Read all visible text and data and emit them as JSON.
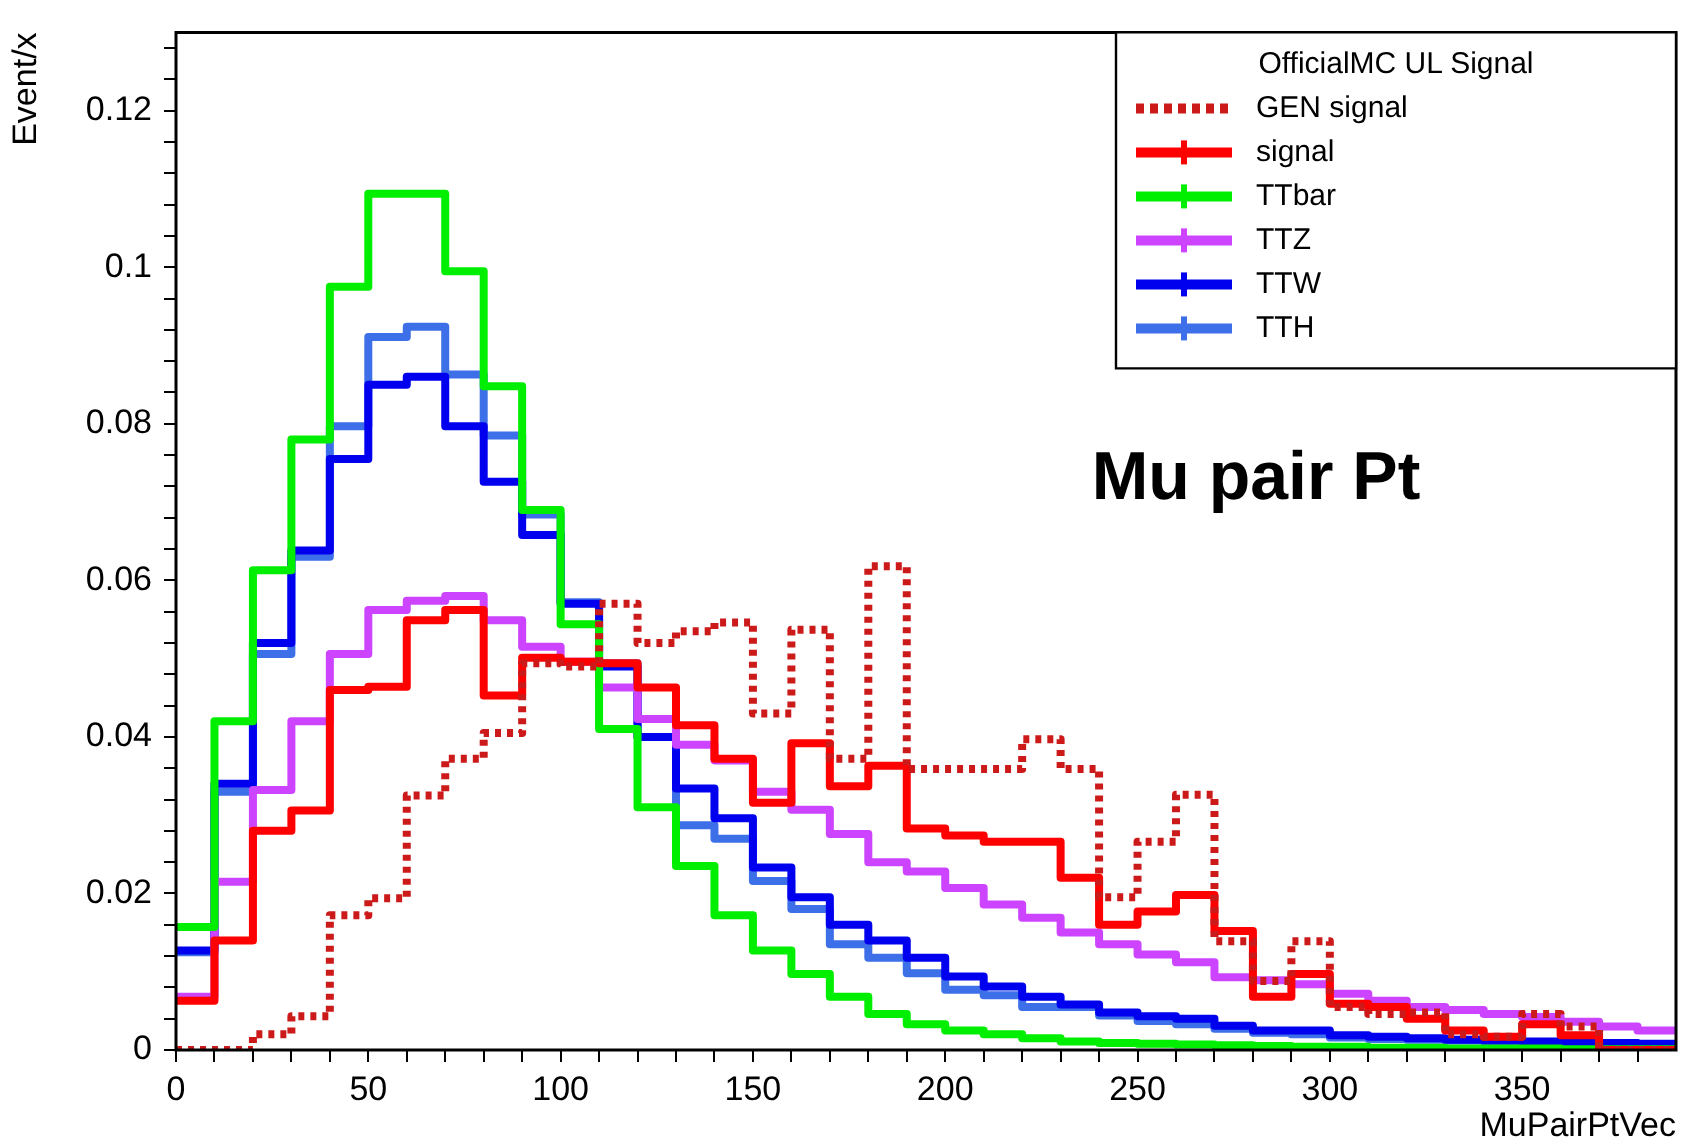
{
  "chart_data": {
    "type": "histogram",
    "xlabel": "MuPairPtVec",
    "ylabel": "Event/x",
    "legend_title": "OfficialMC UL Signal",
    "legend": "top right",
    "grid": false,
    "annotations": [
      "Mu pair Pt"
    ],
    "bins": [
      0,
      10,
      20,
      30,
      40,
      50,
      60,
      70,
      80,
      90,
      100,
      110,
      120,
      130,
      140,
      150,
      160,
      170,
      180,
      190,
      200,
      210,
      220,
      230,
      240,
      250,
      260,
      270,
      280,
      290,
      300,
      310,
      320,
      330,
      340,
      350,
      360,
      370,
      380,
      390
    ],
    "xlim": [
      0,
      390
    ],
    "xticks": [
      0,
      {
        "value": 10,
        "label": null
      },
      {
        "value": 20,
        "label": null
      },
      {
        "value": 30,
        "label": null
      },
      {
        "value": 40,
        "label": null
      },
      50,
      {
        "value": 60,
        "label": null
      },
      {
        "value": 70,
        "label": null
      },
      {
        "value": 80,
        "label": null
      },
      {
        "value": 90,
        "label": null
      },
      100,
      {
        "value": 110,
        "label": null
      },
      {
        "value": 120,
        "label": null
      },
      {
        "value": 130,
        "label": null
      },
      {
        "value": 140,
        "label": null
      },
      150,
      {
        "value": 160,
        "label": null
      },
      {
        "value": 170,
        "label": null
      },
      {
        "value": 180,
        "label": null
      },
      {
        "value": 190,
        "label": null
      },
      200,
      {
        "value": 210,
        "label": null
      },
      {
        "value": 220,
        "label": null
      },
      {
        "value": 230,
        "label": null
      },
      {
        "value": 240,
        "label": null
      },
      250,
      {
        "value": 260,
        "label": null
      },
      {
        "value": 270,
        "label": null
      },
      {
        "value": 280,
        "label": null
      },
      {
        "value": 290,
        "label": null
      },
      300,
      {
        "value": 310,
        "label": null
      },
      {
        "value": 320,
        "label": null
      },
      {
        "value": 330,
        "label": null
      },
      {
        "value": 340,
        "label": null
      },
      350,
      {
        "value": 360,
        "label": null
      },
      {
        "value": 370,
        "label": null
      },
      {
        "value": 380,
        "label": null
      }
    ],
    "ylim": [
      0,
      0.13
    ],
    "yticks": [
      0,
      {
        "value": 0.004,
        "label": null
      },
      {
        "value": 0.008,
        "label": null
      },
      {
        "value": 0.012,
        "label": null
      },
      {
        "value": 0.016,
        "label": null
      },
      0.02,
      {
        "value": 0.024,
        "label": null
      },
      {
        "value": 0.028,
        "label": null
      },
      {
        "value": 0.032,
        "label": null
      },
      {
        "value": 0.036,
        "label": null
      },
      0.04,
      {
        "value": 0.044,
        "label": null
      },
      {
        "value": 0.048,
        "label": null
      },
      {
        "value": 0.052,
        "label": null
      },
      {
        "value": 0.056,
        "label": null
      },
      0.06,
      {
        "value": 0.064,
        "label": null
      },
      {
        "value": 0.068,
        "label": null
      },
      {
        "value": 0.072,
        "label": null
      },
      {
        "value": 0.076,
        "label": null
      },
      0.08,
      {
        "value": 0.084,
        "label": null
      },
      {
        "value": 0.088,
        "label": null
      },
      {
        "value": 0.092,
        "label": null
      },
      {
        "value": 0.096,
        "label": null
      },
      0.1,
      {
        "value": 0.104,
        "label": null
      },
      {
        "value": 0.108,
        "label": null
      },
      {
        "value": 0.112,
        "label": null
      },
      {
        "value": 0.116,
        "label": null
      },
      0.12,
      {
        "value": 0.124,
        "label": null
      },
      {
        "value": 0.128,
        "label": null
      }
    ],
    "series": [
      {
        "name": "GEN signal",
        "color": "#cc1a1a",
        "line_style": "dotted",
        "values": [
          0,
          0,
          0.002,
          0.0043,
          0.0172,
          0.0194,
          0.0325,
          0.0372,
          0.0405,
          0.0494,
          0.049,
          0.057,
          0.052,
          0.0535,
          0.0546,
          0.043,
          0.0537,
          0.0372,
          0.0618,
          0.0359,
          0.0359,
          0.0359,
          0.0397,
          0.0359,
          0.0195,
          0.0266,
          0.0326,
          0.0139,
          0.0088,
          0.0139,
          0.0055,
          0.0046,
          0.0048,
          0.002,
          0.0017,
          0.0046,
          0.003,
          0,
          0
        ]
      },
      {
        "name": "signal",
        "color": "#ff0000",
        "line_style": "solid",
        "values": [
          0.0063,
          0.014,
          0.028,
          0.0306,
          0.046,
          0.0464,
          0.0549,
          0.0562,
          0.0453,
          0.0501,
          0.0496,
          0.0494,
          0.0463,
          0.0415,
          0.0372,
          0.0316,
          0.0392,
          0.0337,
          0.0363,
          0.0283,
          0.0274,
          0.0266,
          0.0266,
          0.022,
          0.016,
          0.0177,
          0.0198,
          0.0152,
          0.0068,
          0.0097,
          0.0059,
          0.0055,
          0.004,
          0.0025,
          0.0017,
          0.0033,
          0.0019,
          0,
          0
        ]
      },
      {
        "name": "TTbar",
        "color": "#00ee00",
        "line_style": "solid",
        "values": [
          0.0157,
          0.042,
          0.0613,
          0.078,
          0.0975,
          0.1094,
          0.1094,
          0.0995,
          0.0848,
          0.069,
          0.0544,
          0.041,
          0.031,
          0.0235,
          0.0172,
          0.0127,
          0.0097,
          0.0068,
          0.0046,
          0.0033,
          0.0025,
          0.002,
          0.0015,
          0.0011,
          0.0009,
          0.0008,
          0.0007,
          0.0006,
          0.0005,
          0.0004,
          0.0004,
          0.0003,
          0.0003,
          0.0002,
          0.0002,
          0.0002,
          0.0001,
          0.0001,
          0.0001
        ]
      },
      {
        "name": "TTZ",
        "color": "#cc44ff",
        "line_style": "solid",
        "values": [
          0.0068,
          0.0215,
          0.0332,
          0.042,
          0.0506,
          0.0562,
          0.0574,
          0.058,
          0.0549,
          0.0515,
          0.0496,
          0.0463,
          0.0423,
          0.039,
          0.037,
          0.033,
          0.0307,
          0.0276,
          0.024,
          0.0228,
          0.0207,
          0.0186,
          0.0169,
          0.015,
          0.0135,
          0.0122,
          0.0112,
          0.0093,
          0.0089,
          0.0084,
          0.0072,
          0.0063,
          0.0055,
          0.0051,
          0.0046,
          0.0042,
          0.0036,
          0.003,
          0.0025
        ]
      },
      {
        "name": "TTW",
        "color": "#0000ee",
        "line_style": "solid",
        "values": [
          0.0127,
          0.034,
          0.052,
          0.0638,
          0.0755,
          0.085,
          0.086,
          0.0797,
          0.0726,
          0.0658,
          0.057,
          0.049,
          0.04,
          0.0334,
          0.0296,
          0.0233,
          0.0195,
          0.016,
          0.014,
          0.0118,
          0.0094,
          0.0081,
          0.0068,
          0.0058,
          0.0048,
          0.0043,
          0.004,
          0.0031,
          0.0025,
          0.0025,
          0.0019,
          0.0017,
          0.0015,
          0.0013,
          0.0012,
          0.0011,
          0.001,
          0.0009,
          0.0008
        ]
      },
      {
        "name": "TTH",
        "color": "#3d6fe8",
        "line_style": "solid",
        "values": [
          0.0125,
          0.033,
          0.0506,
          0.063,
          0.0797,
          0.0911,
          0.0924,
          0.0863,
          0.0785,
          0.0684,
          0.0572,
          0.0494,
          0.04,
          0.0287,
          0.027,
          0.0216,
          0.018,
          0.0135,
          0.0118,
          0.0098,
          0.0077,
          0.007,
          0.0055,
          0.0055,
          0.0044,
          0.0037,
          0.0033,
          0.0027,
          0.0022,
          0.002,
          0.0016,
          0.0014,
          0.0013,
          0.0012,
          0.0011,
          0.001,
          0.0009,
          0.0008,
          0.0007
        ]
      }
    ]
  }
}
